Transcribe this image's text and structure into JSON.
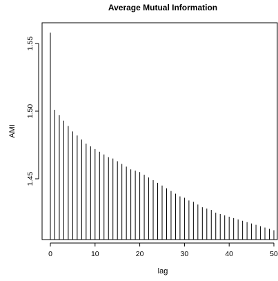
{
  "chart_data": {
    "type": "bar",
    "title": "Average Mutual Information",
    "xlabel": "lag",
    "ylabel": "AMI",
    "x_ticks": [
      "0",
      "10",
      "20",
      "30",
      "40",
      "50"
    ],
    "y_ticks": [
      "1.45",
      "1.50",
      "1.55"
    ],
    "xlim": [
      -2,
      50
    ],
    "ylim": [
      1.405,
      1.565
    ],
    "grid": false,
    "bar_color": "#000000",
    "x": [
      0,
      1,
      2,
      3,
      4,
      5,
      6,
      7,
      8,
      9,
      10,
      11,
      12,
      13,
      14,
      15,
      16,
      17,
      18,
      19,
      20,
      21,
      22,
      23,
      24,
      25,
      26,
      27,
      28,
      29,
      30,
      31,
      32,
      33,
      34,
      35,
      36,
      37,
      38,
      39,
      40,
      41,
      42,
      43,
      44,
      45,
      46,
      47,
      48,
      49,
      50
    ],
    "values": [
      1.558,
      1.501,
      1.497,
      1.493,
      1.489,
      1.485,
      1.482,
      1.479,
      1.476,
      1.474,
      1.472,
      1.47,
      1.468,
      1.466,
      1.465,
      1.463,
      1.461,
      1.459,
      1.457,
      1.456,
      1.455,
      1.453,
      1.451,
      1.449,
      1.447,
      1.445,
      1.443,
      1.441,
      1.439,
      1.437,
      1.436,
      1.434,
      1.433,
      1.431,
      1.429,
      1.428,
      1.427,
      1.425,
      1.424,
      1.423,
      1.422,
      1.421,
      1.42,
      1.419,
      1.418,
      1.417,
      1.416,
      1.415,
      1.414,
      1.413,
      1.412
    ]
  }
}
